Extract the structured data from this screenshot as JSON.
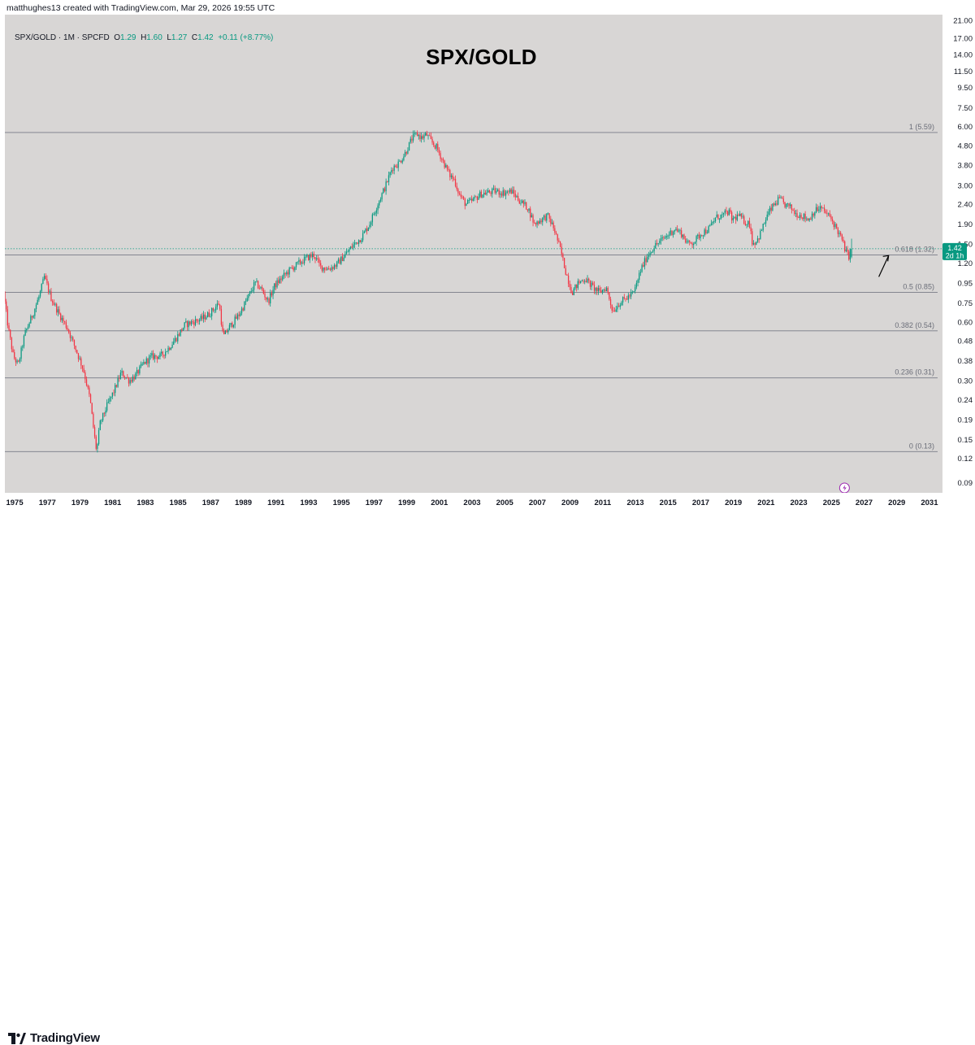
{
  "caption": "matthughes13 created with TradingView.com, Mar 29, 2026 19:55 UTC",
  "legend": {
    "symbol": "SPX/GOLD · 1M · SPCFD",
    "o_label": "O",
    "o": "1.29",
    "h_label": "H",
    "h": "1.60",
    "l_label": "L",
    "l": "1.27",
    "c_label": "C",
    "c": "1.42",
    "change": "+0.11 (+8.77%)"
  },
  "brand": "TradingView",
  "colors": {
    "up": "#089981",
    "down": "#f23645",
    "plot_bg": "#d8d6d5",
    "level_line": "#787b86",
    "price_badge": "#089981"
  },
  "chart_data": {
    "type": "candlestick",
    "title": "SPX/GOLD",
    "timeframe": "1M",
    "scale": "log",
    "xlabel": "",
    "ylabel": "",
    "ylim": [
      0.08,
      22
    ],
    "xlim": [
      1974.4,
      2031.8
    ],
    "y_ticks": [
      "21.00",
      "17.00",
      "14.00",
      "11.50",
      "9.50",
      "7.50",
      "6.00",
      "4.80",
      "3.80",
      "3.00",
      "2.40",
      "1.90",
      "1.50",
      "1.20",
      "0.95",
      "0.75",
      "0.60",
      "0.48",
      "0.38",
      "0.30",
      "0.24",
      "0.19",
      "0.15",
      "0.12",
      "0.09"
    ],
    "x_ticks": [
      "1975",
      "1977",
      "1979",
      "1981",
      "1983",
      "1985",
      "1987",
      "1989",
      "1991",
      "1993",
      "1995",
      "1997",
      "1999",
      "2001",
      "2003",
      "2005",
      "2007",
      "2009",
      "2011",
      "2013",
      "2015",
      "2017",
      "2019",
      "2021",
      "2023",
      "2025",
      "2027",
      "2029",
      "2031"
    ],
    "fib_levels": [
      {
        "ratio": "1",
        "value": 5.59,
        "label": "1 (5.59)"
      },
      {
        "ratio": "0.618",
        "value": 1.32,
        "label": "0.618 (1.32)"
      },
      {
        "ratio": "0.5",
        "value": 0.85,
        "label": "0.5 (0.85)"
      },
      {
        "ratio": "0.382",
        "value": 0.54,
        "label": "0.382 (0.54)"
      },
      {
        "ratio": "0.236",
        "value": 0.31,
        "label": "0.236 (0.31)"
      },
      {
        "ratio": "0",
        "value": 0.13,
        "label": "0 (0.13)"
      }
    ],
    "last_price": {
      "value": 1.42,
      "label": "1.42",
      "countdown": "2d 1h"
    },
    "path_points": [
      [
        1974.4,
        0.85
      ],
      [
        1974.7,
        0.55
      ],
      [
        1975.0,
        0.4
      ],
      [
        1975.3,
        0.36
      ],
      [
        1975.7,
        0.52
      ],
      [
        1976.2,
        0.66
      ],
      [
        1976.6,
        0.82
      ],
      [
        1976.9,
        1.02
      ],
      [
        1977.3,
        0.8
      ],
      [
        1977.8,
        0.66
      ],
      [
        1978.3,
        0.56
      ],
      [
        1978.8,
        0.44
      ],
      [
        1979.3,
        0.34
      ],
      [
        1979.7,
        0.24
      ],
      [
        1979.95,
        0.16
      ],
      [
        1980.1,
        0.13
      ],
      [
        1980.3,
        0.18
      ],
      [
        1980.7,
        0.22
      ],
      [
        1981.2,
        0.27
      ],
      [
        1981.6,
        0.33
      ],
      [
        1982.1,
        0.3
      ],
      [
        1982.5,
        0.32
      ],
      [
        1983.0,
        0.37
      ],
      [
        1983.5,
        0.4
      ],
      [
        1984.0,
        0.4
      ],
      [
        1984.5,
        0.44
      ],
      [
        1985.0,
        0.5
      ],
      [
        1985.5,
        0.58
      ],
      [
        1986.0,
        0.6
      ],
      [
        1986.5,
        0.62
      ],
      [
        1987.0,
        0.66
      ],
      [
        1987.6,
        0.75
      ],
      [
        1987.85,
        0.5
      ],
      [
        1988.2,
        0.56
      ],
      [
        1988.8,
        0.65
      ],
      [
        1989.3,
        0.78
      ],
      [
        1989.8,
        0.95
      ],
      [
        1990.2,
        0.88
      ],
      [
        1990.6,
        0.76
      ],
      [
        1991.0,
        0.92
      ],
      [
        1991.5,
        1.02
      ],
      [
        1992.0,
        1.12
      ],
      [
        1992.5,
        1.2
      ],
      [
        1993.0,
        1.28
      ],
      [
        1993.4,
        1.32
      ],
      [
        1993.8,
        1.15
      ],
      [
        1994.3,
        1.12
      ],
      [
        1994.8,
        1.18
      ],
      [
        1995.3,
        1.32
      ],
      [
        1995.8,
        1.48
      ],
      [
        1996.3,
        1.62
      ],
      [
        1996.8,
        1.9
      ],
      [
        1997.3,
        2.4
      ],
      [
        1997.8,
        3.0
      ],
      [
        1998.2,
        3.7
      ],
      [
        1998.6,
        3.9
      ],
      [
        1999.0,
        4.4
      ],
      [
        1999.4,
        5.2
      ],
      [
        1999.7,
        5.5
      ],
      [
        2000.0,
        5.25
      ],
      [
        2000.3,
        5.45
      ],
      [
        2000.6,
        5.0
      ],
      [
        2000.9,
        4.7
      ],
      [
        2001.3,
        4.0
      ],
      [
        2001.7,
        3.4
      ],
      [
        2002.0,
        3.2
      ],
      [
        2002.3,
        2.7
      ],
      [
        2002.7,
        2.4
      ],
      [
        2003.1,
        2.5
      ],
      [
        2003.6,
        2.7
      ],
      [
        2004.0,
        2.75
      ],
      [
        2004.5,
        2.8
      ],
      [
        2005.0,
        2.75
      ],
      [
        2005.5,
        2.8
      ],
      [
        2006.0,
        2.5
      ],
      [
        2006.5,
        2.3
      ],
      [
        2006.9,
        1.9
      ],
      [
        2007.3,
        2.0
      ],
      [
        2007.7,
        2.1
      ],
      [
        2008.1,
        1.8
      ],
      [
        2008.5,
        1.4
      ],
      [
        2008.8,
        1.1
      ],
      [
        2009.2,
        0.85
      ],
      [
        2009.6,
        0.95
      ],
      [
        2010.0,
        1.0
      ],
      [
        2010.5,
        0.9
      ],
      [
        2010.9,
        0.85
      ],
      [
        2011.3,
        0.9
      ],
      [
        2011.7,
        0.68
      ],
      [
        2012.1,
        0.75
      ],
      [
        2012.6,
        0.8
      ],
      [
        2013.0,
        0.85
      ],
      [
        2013.4,
        1.1
      ],
      [
        2013.8,
        1.3
      ],
      [
        2014.2,
        1.45
      ],
      [
        2014.6,
        1.55
      ],
      [
        2015.0,
        1.65
      ],
      [
        2015.5,
        1.8
      ],
      [
        2015.9,
        1.7
      ],
      [
        2016.3,
        1.5
      ],
      [
        2016.7,
        1.55
      ],
      [
        2017.1,
        1.7
      ],
      [
        2017.6,
        1.8
      ],
      [
        2018.0,
        2.05
      ],
      [
        2018.4,
        2.1
      ],
      [
        2018.8,
        2.2
      ],
      [
        2019.0,
        2.0
      ],
      [
        2019.4,
        2.1
      ],
      [
        2019.8,
        1.95
      ],
      [
        2020.1,
        1.9
      ],
      [
        2020.25,
        1.5
      ],
      [
        2020.6,
        1.6
      ],
      [
        2020.9,
        1.85
      ],
      [
        2021.2,
        2.15
      ],
      [
        2021.6,
        2.4
      ],
      [
        2021.9,
        2.55
      ],
      [
        2022.2,
        2.4
      ],
      [
        2022.6,
        2.3
      ],
      [
        2022.9,
        2.15
      ],
      [
        2023.3,
        2.1
      ],
      [
        2023.7,
        2.0
      ],
      [
        2024.0,
        2.2
      ],
      [
        2024.4,
        2.3
      ],
      [
        2024.8,
        2.15
      ],
      [
        2025.1,
        2.0
      ],
      [
        2025.4,
        1.8
      ],
      [
        2025.7,
        1.6
      ],
      [
        2026.0,
        1.35
      ],
      [
        2026.2,
        1.29
      ],
      [
        2026.25,
        1.42
      ]
    ]
  }
}
